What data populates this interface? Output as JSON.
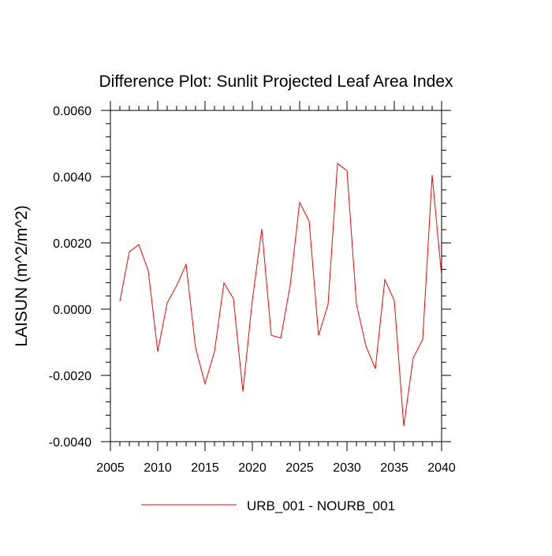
{
  "chart_data": {
    "type": "line",
    "title": "Difference Plot: Sunlit Projected Leaf Area Index",
    "ylabel": "LAISUN  (m^2/m^2)",
    "xlabel": "",
    "xlim": [
      2005,
      2040
    ],
    "ylim": [
      -0.004,
      0.006
    ],
    "x_ticks": [
      2005,
      2010,
      2015,
      2020,
      2025,
      2030,
      2035,
      2040
    ],
    "x_tick_labels": [
      "2005",
      "2010",
      "2015",
      "2020",
      "2025",
      "2030",
      "2035",
      "2040"
    ],
    "y_ticks": [
      -0.004,
      -0.002,
      0.0,
      0.002,
      0.004,
      0.006
    ],
    "y_tick_labels": [
      "-0.0040",
      "-0.0020",
      "0.0000",
      "0.0020",
      "0.0040",
      "0.0060"
    ],
    "grid": false,
    "legend_position": "bottom-center",
    "series": [
      {
        "name": "URB_001 - NOURB_001",
        "color": "#ff0000",
        "x": [
          2006,
          2007,
          2008,
          2009,
          2010,
          2011,
          2012,
          2013,
          2014,
          2015,
          2016,
          2017,
          2018,
          2019,
          2020,
          2021,
          2022,
          2023,
          2024,
          2025,
          2026,
          2027,
          2028,
          2029,
          2030,
          2031,
          2032,
          2033,
          2034,
          2035,
          2036,
          2037,
          2038,
          2039,
          2040
        ],
        "y": [
          0.00024,
          0.00173,
          0.00195,
          0.00116,
          -0.00128,
          0.00019,
          0.00071,
          0.00135,
          -0.00117,
          -0.00225,
          -0.00128,
          0.00079,
          0.00032,
          -0.00249,
          0.00027,
          0.00242,
          -0.00079,
          -0.00087,
          0.00072,
          0.00322,
          0.00266,
          -0.00079,
          0.00014,
          0.0044,
          0.00418,
          0.00015,
          -0.00111,
          -0.0018,
          0.00089,
          0.00026,
          -0.00353,
          -0.00147,
          -0.00092,
          0.00405,
          0.001
        ]
      }
    ]
  }
}
